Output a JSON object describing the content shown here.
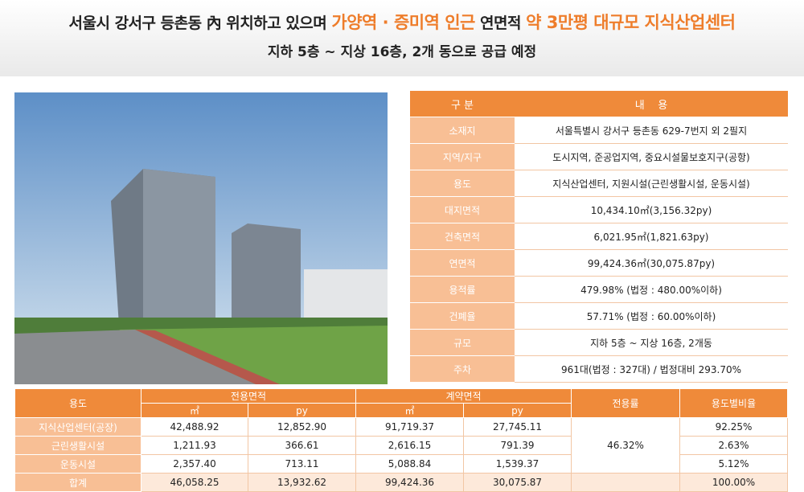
{
  "header": {
    "line1": [
      "서울시 강서구 등촌동 內 위치하고 있으며",
      "가양역 · 증미역 인근",
      "연면적",
      "약 3만평 대규모 지식산업센터"
    ],
    "line2": "지하 5층 ~ 지상 16층, 2개 동으로 공급 예정"
  },
  "info_table": {
    "columns": [
      "구 분",
      "내    용"
    ],
    "rows": [
      [
        "소재지",
        "서울특별시 강서구 등촌동 629-7번지 외 2필지"
      ],
      [
        "지역/지구",
        "도시지역, 준공업지역, 중요시설물보호지구(공항)"
      ],
      [
        "용도",
        "지식산업센터, 지원시설(근린생활시설, 운동시설)"
      ],
      [
        "대지면적",
        "10,434.10㎡(3,156.32py)"
      ],
      [
        "건축면적",
        "6,021.95㎡(1,821.63py)"
      ],
      [
        "연면적",
        "99,424.36㎡(30,075.87py)"
      ],
      [
        "용적률",
        "479.98% (법정 : 480.00%이하)"
      ],
      [
        "건폐율",
        "57.71% (법정 : 60.00%이하)"
      ],
      [
        "규모",
        "지하 5층 ~ 지상 16층, 2개동"
      ],
      [
        "주차",
        "961대(법정 : 327대) / 법정대비 293.70%"
      ]
    ]
  },
  "area_table": {
    "columns": [
      "용도",
      "전용면적",
      "계약면적",
      "전용률",
      "용도별비율"
    ],
    "units": [
      "㎡",
      "py",
      "㎡",
      "py"
    ],
    "rows": [
      [
        "지식산업센터(공장)",
        "42,488.92",
        "12,852.90",
        "91,719.37",
        "27,745.11",
        "92.25%"
      ],
      [
        "근린생활시설",
        "1,211.93",
        "366.61",
        "2,616.15",
        "791.39",
        "2.63%"
      ],
      [
        "운동시설",
        "2,357.40",
        "713.11",
        "5,088.84",
        "1,539.37",
        "5.12%"
      ],
      [
        "합계",
        "46,058.25",
        "13,932.62",
        "99,424.36",
        "30,075.87",
        "100.00%"
      ]
    ],
    "exclusive_rate": "46.32%"
  }
}
